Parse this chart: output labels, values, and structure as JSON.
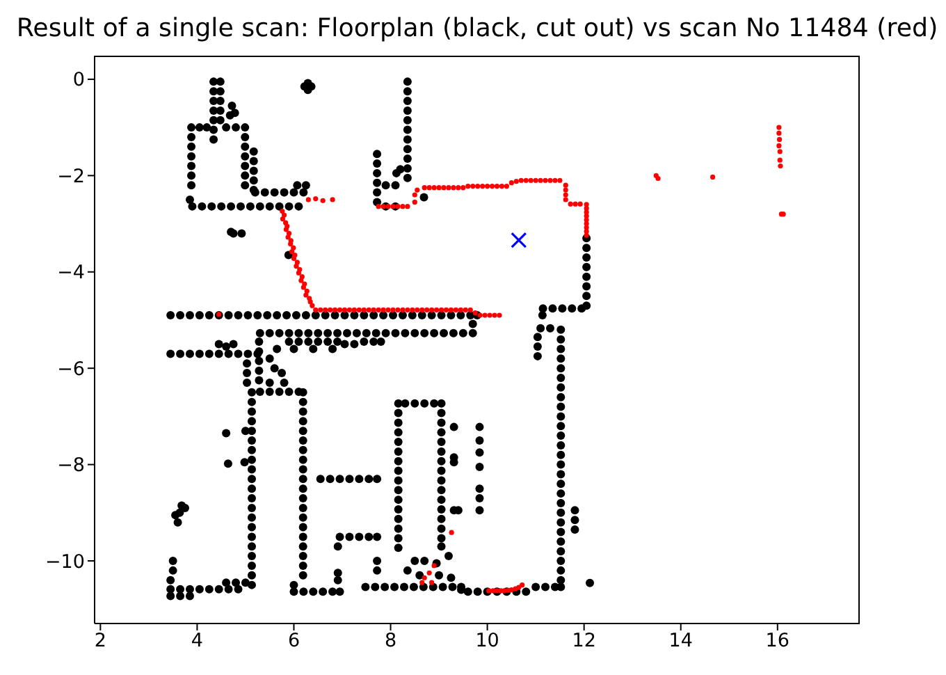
{
  "chart_data": {
    "type": "scatter",
    "title": "Result of a single scan: Floorplan (black, cut out) vs scan No 11484 (red)",
    "xlim": [
      1.88,
      17.7
    ],
    "xticks": [
      2,
      4,
      6,
      8,
      10,
      12,
      14,
      16
    ],
    "ylim": [
      -11.3,
      0.49
    ],
    "yticks": [
      0,
      {
        "value": -2,
        "label": "−2"
      },
      {
        "value": -4,
        "label": "−4"
      },
      {
        "value": -6,
        "label": "−6"
      },
      {
        "value": -8,
        "label": "−8"
      },
      {
        "value": -10,
        "label": "−10"
      }
    ],
    "series": [
      {
        "color": "#000000",
        "marker": "circle",
        "x": [
          4.34,
          4.34,
          4.34,
          4.34,
          4.34,
          4.34,
          4.34,
          4.48,
          4.48,
          4.48,
          4.48,
          4.48,
          4.72,
          4.78,
          4.68,
          6.22,
          6.36,
          6.29,
          6.29,
          3.88,
          3.88,
          3.88,
          3.88,
          3.88,
          3.88,
          3.88,
          4.05,
          4.2,
          4.6,
          4.8,
          4.99,
          4.99,
          4.99,
          4.99,
          4.99,
          4.99,
          4.99,
          5.17,
          5.17,
          5.17,
          5.17,
          5.17,
          5.2,
          5.4,
          5.6,
          5.8,
          6.0,
          6.2,
          6.07,
          6.25,
          3.85,
          3.9,
          4.1,
          4.3,
          4.5,
          4.7,
          4.9,
          5.1,
          5.3,
          5.5,
          5.7,
          5.9,
          6.1,
          8.35,
          8.35,
          8.35,
          8.35,
          8.35,
          8.35,
          8.35,
          8.35,
          8.35,
          8.35,
          8.35,
          7.72,
          7.72,
          7.72,
          7.72,
          7.72,
          7.72,
          7.9,
          8.1,
          7.9,
          8.1,
          8.2,
          8.12,
          8.69,
          4.7,
          4.75,
          4.92,
          5.89,
          12.05,
          12.05,
          12.05,
          12.05,
          12.05,
          12.05,
          12.05,
          12.05,
          11.15,
          11.35,
          11.55,
          11.75,
          11.95,
          11.14,
          3.45,
          3.65,
          3.85,
          4.05,
          4.25,
          4.45,
          4.65,
          4.85,
          5.05,
          5.25,
          5.45,
          5.65,
          5.85,
          6.05,
          6.25,
          6.45,
          6.65,
          6.85,
          7.05,
          7.25,
          7.45,
          7.65,
          7.85,
          8.05,
          8.25,
          8.45,
          8.65,
          8.85,
          9.05,
          9.25,
          9.45,
          9.65,
          9.79,
          5.3,
          5.5,
          5.7,
          5.9,
          6.1,
          6.3,
          6.5,
          6.7,
          6.9,
          7.1,
          7.3,
          7.5,
          7.7,
          7.9,
          8.1,
          8.3,
          8.5,
          8.7,
          8.9,
          9.1,
          9.3,
          9.5,
          9.7,
          9.7,
          5.9,
          6.1,
          6.3,
          6.5,
          6.7,
          6.9,
          6.0,
          6.4,
          6.8,
          7.05,
          7.25,
          7.45,
          7.65,
          7.8,
          3.45,
          3.65,
          3.85,
          4.05,
          4.25,
          4.45,
          4.65,
          4.85,
          5.05,
          5.25,
          4.45,
          4.6,
          4.75,
          5.03,
          5.03,
          5.03,
          5.28,
          5.28,
          5.28,
          5.28,
          5.28,
          5.5,
          5.6,
          5.75,
          5.8,
          5.5,
          5.65,
          5.3,
          5.5,
          5.7,
          5.9,
          6.1,
          5.13,
          5.13,
          5.13,
          5.13,
          5.13,
          5.13,
          5.13,
          5.13,
          5.13,
          5.13,
          5.13,
          5.13,
          5.13,
          5.13,
          5.13,
          5.13,
          5.13,
          5.13,
          5.13,
          5.13,
          5.13,
          6.19,
          6.19,
          6.19,
          6.19,
          6.19,
          6.19,
          6.19,
          6.19,
          6.19,
          6.19,
          6.19,
          6.19,
          6.19,
          6.19,
          6.19,
          6.19,
          6.19,
          6.19,
          6.19,
          6.19,
          3.45,
          3.65,
          3.85,
          4.05,
          4.25,
          4.45,
          4.65,
          4.85,
          3.45,
          3.65,
          3.85,
          4.6,
          4.8,
          5.0,
          3.5,
          3.5,
          3.45,
          3.64,
          3.55,
          3.75,
          3.6,
          3.68,
          4.6,
          4.64,
          5.0,
          4.98,
          6.0,
          6.2,
          6.4,
          6.6,
          6.8,
          6.95,
          6.0,
          6.91,
          6.91,
          6.55,
          6.75,
          6.95,
          7.15,
          7.35,
          7.55,
          7.72,
          6.95,
          7.15,
          7.35,
          7.55,
          7.72,
          6.91,
          8.3,
          8.5,
          8.7,
          8.9,
          8.16,
          8.16,
          8.16,
          8.16,
          8.16,
          8.16,
          8.16,
          8.16,
          8.16,
          8.16,
          8.16,
          8.16,
          8.16,
          8.16,
          8.16,
          8.16,
          9.05,
          9.05,
          9.05,
          9.05,
          9.05,
          9.05,
          9.05,
          9.05,
          9.05,
          9.05,
          9.05,
          9.05,
          9.05,
          9.05,
          9.05,
          9.05,
          9.31,
          9.31,
          9.31,
          9.31,
          9.4,
          9.84,
          9.84,
          9.84,
          9.84,
          9.84,
          9.84,
          9.84,
          7.48,
          7.68,
          7.88,
          8.08,
          8.28,
          8.48,
          8.68,
          8.88,
          9.08,
          9.28,
          9.46,
          9.46,
          9.6,
          9.8,
          10.0,
          10.2,
          10.4,
          10.6,
          10.8,
          11.0,
          11.2,
          11.4,
          11.52,
          11.52,
          11.52,
          11.52,
          11.52,
          11.52,
          11.52,
          11.52,
          11.52,
          11.52,
          11.52,
          11.52,
          11.52,
          11.52,
          11.52,
          11.52,
          11.52,
          11.52,
          11.52,
          11.52,
          11.52,
          11.52,
          11.52,
          11.52,
          11.52,
          11.52,
          11.52,
          11.52,
          11.1,
          11.3,
          11.04,
          11.04,
          11.04,
          11.81,
          11.81,
          11.81,
          12.12,
          8.5,
          8.7,
          8.95,
          9.2,
          8.6,
          9.0,
          8.35,
          9.25,
          7.72,
          7.72
        ],
        "values": [
          -0.05,
          -0.25,
          -0.45,
          -0.65,
          -0.85,
          -1.05,
          -1.25,
          -0.05,
          -0.25,
          -0.45,
          -0.65,
          -0.85,
          -0.55,
          -0.7,
          -0.75,
          -0.15,
          -0.15,
          -0.08,
          -0.22,
          -1.0,
          -1.2,
          -1.4,
          -1.6,
          -1.8,
          -2.0,
          -2.2,
          -1.0,
          -1.0,
          -1.0,
          -1.0,
          -1.0,
          -1.2,
          -1.4,
          -1.6,
          -1.8,
          -2.0,
          -2.2,
          -1.5,
          -1.7,
          -1.9,
          -2.1,
          -2.3,
          -2.35,
          -2.35,
          -2.35,
          -2.35,
          -2.35,
          -2.35,
          -2.2,
          -2.2,
          -2.5,
          -2.64,
          -2.64,
          -2.64,
          -2.64,
          -2.64,
          -2.64,
          -2.64,
          -2.64,
          -2.64,
          -2.64,
          -2.64,
          -2.64,
          -0.05,
          -0.25,
          -0.45,
          -0.65,
          -0.85,
          -1.05,
          -1.25,
          -1.45,
          -1.65,
          -1.85,
          -2.05,
          -1.55,
          -1.75,
          -1.95,
          -2.15,
          -2.35,
          -2.55,
          -2.64,
          -2.64,
          -2.2,
          -2.2,
          -1.87,
          -1.95,
          -2.45,
          -3.17,
          -3.2,
          -3.2,
          -3.65,
          -3.3,
          -3.5,
          -3.7,
          -3.9,
          -4.1,
          -4.3,
          -4.5,
          -4.7,
          -4.76,
          -4.76,
          -4.76,
          -4.76,
          -4.76,
          -4.9,
          -4.9,
          -4.9,
          -4.9,
          -4.9,
          -4.9,
          -4.9,
          -4.9,
          -4.9,
          -4.9,
          -4.9,
          -4.9,
          -4.9,
          -4.9,
          -4.9,
          -4.9,
          -4.9,
          -4.9,
          -4.9,
          -4.9,
          -4.9,
          -4.9,
          -4.9,
          -4.9,
          -4.9,
          -4.9,
          -4.9,
          -4.9,
          -4.9,
          -4.9,
          -4.9,
          -4.9,
          -4.9,
          -4.9,
          -5.27,
          -5.27,
          -5.27,
          -5.27,
          -5.27,
          -5.27,
          -5.27,
          -5.27,
          -5.27,
          -5.27,
          -5.27,
          -5.27,
          -5.27,
          -5.27,
          -5.27,
          -5.27,
          -5.27,
          -5.27,
          -5.27,
          -5.27,
          -5.27,
          -5.27,
          -5.27,
          -5.08,
          -5.45,
          -5.45,
          -5.45,
          -5.45,
          -5.45,
          -5.45,
          -5.6,
          -5.6,
          -5.6,
          -5.5,
          -5.5,
          -5.45,
          -5.45,
          -5.45,
          -5.7,
          -5.7,
          -5.7,
          -5.7,
          -5.7,
          -5.7,
          -5.7,
          -5.7,
          -5.7,
          -5.7,
          -5.5,
          -5.55,
          -5.5,
          -5.9,
          -6.1,
          -6.3,
          -5.45,
          -5.65,
          -5.85,
          -6.05,
          -6.25,
          -5.8,
          -6.0,
          -6.1,
          -6.3,
          -6.3,
          -5.6,
          -6.49,
          -6.49,
          -6.49,
          -6.49,
          -6.49,
          -6.5,
          -6.7,
          -6.9,
          -7.1,
          -7.3,
          -7.5,
          -7.7,
          -7.9,
          -8.1,
          -8.3,
          -8.5,
          -8.7,
          -8.9,
          -9.1,
          -9.3,
          -9.5,
          -9.7,
          -9.9,
          -10.1,
          -10.3,
          -10.5,
          -6.5,
          -6.7,
          -6.9,
          -7.1,
          -7.3,
          -7.5,
          -7.7,
          -7.9,
          -8.1,
          -8.3,
          -8.5,
          -8.7,
          -8.9,
          -9.1,
          -9.3,
          -9.5,
          -9.7,
          -9.9,
          -10.1,
          -10.3,
          -10.59,
          -10.59,
          -10.59,
          -10.59,
          -10.59,
          -10.59,
          -10.59,
          -10.59,
          -10.73,
          -10.73,
          -10.73,
          -10.45,
          -10.45,
          -10.45,
          -10.0,
          -10.2,
          -10.4,
          -9.0,
          -9.05,
          -8.9,
          -9.2,
          -8.85,
          -7.35,
          -7.98,
          -7.3,
          -7.95,
          -10.64,
          -10.64,
          -10.64,
          -10.64,
          -10.64,
          -10.64,
          -10.5,
          -10.4,
          -10.25,
          -8.3,
          -8.3,
          -8.3,
          -8.3,
          -8.3,
          -8.3,
          -8.3,
          -9.5,
          -9.5,
          -9.5,
          -9.5,
          -9.5,
          -9.7,
          -6.73,
          -6.73,
          -6.73,
          -6.73,
          -6.73,
          -6.93,
          -7.13,
          -7.33,
          -7.53,
          -7.73,
          -7.93,
          -8.13,
          -8.33,
          -8.53,
          -8.73,
          -8.93,
          -9.13,
          -9.33,
          -9.53,
          -9.73,
          -6.73,
          -6.93,
          -7.13,
          -7.33,
          -7.53,
          -7.73,
          -7.93,
          -8.13,
          -8.33,
          -8.53,
          -8.73,
          -8.93,
          -9.13,
          -9.33,
          -9.53,
          -9.7,
          -7.22,
          -7.85,
          -7.95,
          -8.95,
          -8.95,
          -7.22,
          -7.5,
          -7.75,
          -8.05,
          -8.5,
          -8.7,
          -8.95,
          -10.54,
          -10.54,
          -10.54,
          -10.54,
          -10.54,
          -10.54,
          -10.54,
          -10.54,
          -10.54,
          -10.54,
          -10.54,
          -10.6,
          -10.64,
          -10.64,
          -10.64,
          -10.64,
          -10.64,
          -10.64,
          -10.64,
          -10.54,
          -10.54,
          -10.54,
          -5.2,
          -5.4,
          -5.6,
          -5.8,
          -6.0,
          -6.2,
          -6.4,
          -6.6,
          -6.8,
          -7.0,
          -7.2,
          -7.4,
          -7.6,
          -7.8,
          -8.0,
          -8.2,
          -8.4,
          -8.6,
          -8.8,
          -9.0,
          -9.2,
          -9.4,
          -9.6,
          -9.8,
          -10.0,
          -10.2,
          -10.4,
          -10.54,
          -5.17,
          -5.17,
          -5.35,
          -5.55,
          -5.75,
          -8.95,
          -9.15,
          -9.35,
          -10.46,
          -10.0,
          -10.0,
          -10.05,
          -9.9,
          -10.3,
          -10.3,
          -10.2,
          -10.35,
          -10.0,
          -10.2
        ]
      },
      {
        "color": "#ff0000",
        "marker": "circle",
        "x": [
          6.3,
          6.45,
          6.6,
          6.8,
          5.76,
          5.8,
          5.77,
          5.83,
          5.86,
          5.84,
          5.9,
          5.88,
          5.94,
          5.93,
          5.99,
          5.96,
          6.02,
          6.0,
          6.07,
          6.05,
          6.12,
          6.1,
          6.17,
          6.15,
          6.22,
          6.2,
          6.27,
          6.25,
          6.32,
          6.34,
          6.38,
          6.45,
          6.55,
          6.65,
          6.75,
          6.85,
          6.95,
          7.05,
          7.15,
          7.25,
          7.35,
          7.45,
          7.55,
          7.65,
          7.75,
          7.85,
          7.95,
          8.05,
          8.15,
          8.25,
          8.35,
          8.45,
          8.55,
          8.65,
          8.75,
          8.85,
          8.95,
          9.05,
          9.15,
          9.25,
          9.35,
          9.45,
          9.55,
          9.65,
          9.75,
          9.85,
          9.95,
          10.05,
          10.15,
          10.25,
          7.75,
          7.85,
          7.95,
          8.05,
          8.15,
          8.25,
          8.35,
          8.5,
          8.5,
          8.55,
          8.7,
          8.8,
          8.9,
          9.0,
          9.1,
          9.2,
          9.3,
          9.4,
          9.5,
          9.6,
          9.7,
          9.8,
          9.9,
          10.0,
          10.1,
          10.2,
          10.3,
          10.4,
          10.5,
          10.6,
          10.7,
          10.8,
          10.9,
          11.0,
          11.1,
          11.2,
          11.3,
          11.4,
          11.5,
          11.62,
          11.62,
          11.62,
          11.62,
          11.72,
          11.82,
          11.92,
          12.05,
          12.05,
          12.05,
          12.05,
          12.05,
          12.05,
          12.05,
          12.05,
          12.05,
          13.49,
          13.53,
          14.66,
          16.03,
          16.03,
          16.04,
          16.03,
          16.05,
          16.05,
          16.06,
          16.08,
          16.12,
          10.03,
          10.12,
          10.2,
          10.28,
          10.35,
          10.43,
          10.5,
          10.58,
          10.65,
          10.72,
          8.7,
          8.8,
          8.9,
          8.85,
          8.65,
          9.26,
          4.45
        ],
        "values": [
          -2.5,
          -2.48,
          -2.52,
          -2.5,
          -2.74,
          -2.82,
          -2.9,
          -2.98,
          -3.05,
          -3.12,
          -3.2,
          -3.28,
          -3.35,
          -3.42,
          -3.5,
          -3.58,
          -3.65,
          -3.72,
          -3.8,
          -3.88,
          -3.95,
          -4.02,
          -4.1,
          -4.18,
          -4.25,
          -4.32,
          -4.4,
          -4.48,
          -4.55,
          -4.62,
          -4.7,
          -4.79,
          -4.79,
          -4.79,
          -4.79,
          -4.79,
          -4.79,
          -4.79,
          -4.79,
          -4.79,
          -4.79,
          -4.79,
          -4.79,
          -4.79,
          -4.79,
          -4.79,
          -4.79,
          -4.79,
          -4.79,
          -4.79,
          -4.79,
          -4.79,
          -4.79,
          -4.79,
          -4.79,
          -4.79,
          -4.79,
          -4.79,
          -4.79,
          -4.79,
          -4.79,
          -4.79,
          -4.79,
          -4.79,
          -4.85,
          -4.9,
          -4.9,
          -4.9,
          -4.9,
          -4.9,
          -2.64,
          -2.64,
          -2.64,
          -2.64,
          -2.64,
          -2.64,
          -2.64,
          -2.55,
          -2.4,
          -2.3,
          -2.25,
          -2.25,
          -2.25,
          -2.25,
          -2.25,
          -2.25,
          -2.25,
          -2.25,
          -2.25,
          -2.22,
          -2.22,
          -2.22,
          -2.22,
          -2.22,
          -2.22,
          -2.22,
          -2.22,
          -2.22,
          -2.15,
          -2.12,
          -2.1,
          -2.1,
          -2.1,
          -2.1,
          -2.1,
          -2.1,
          -2.1,
          -2.1,
          -2.1,
          -2.2,
          -2.3,
          -2.4,
          -2.5,
          -2.59,
          -2.59,
          -2.59,
          -2.6,
          -2.68,
          -2.76,
          -2.84,
          -2.92,
          -3.0,
          -3.08,
          -3.16,
          -3.24,
          -2.0,
          -2.06,
          -2.03,
          -1.0,
          -1.12,
          -1.25,
          -1.38,
          -1.5,
          -1.68,
          -1.8,
          -2.8,
          -2.8,
          -10.62,
          -10.62,
          -10.62,
          -10.62,
          -10.62,
          -10.61,
          -10.6,
          -10.58,
          -10.55,
          -10.5,
          -10.35,
          -10.25,
          -10.1,
          -10.45,
          -10.45,
          -9.41,
          -4.88
        ]
      },
      {
        "color": "#0000ff",
        "marker": "cross",
        "x": [
          10.65
        ],
        "values": [
          -3.34
        ]
      }
    ]
  }
}
